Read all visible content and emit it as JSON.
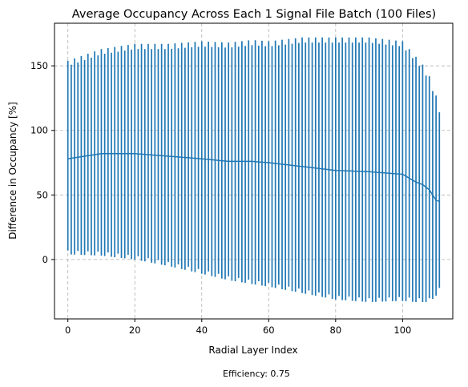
{
  "chart_data": {
    "type": "errorbar",
    "title": "Average Occupancy Across Each 1 Signal File Batch (100 Files)",
    "xlabel": "Radial Layer Index",
    "ylabel": "Difference in Occupancy [%]",
    "xlim": [
      -4,
      115
    ],
    "ylim": [
      -46,
      183
    ],
    "xticks": [
      0,
      20,
      40,
      60,
      80,
      100
    ],
    "yticks": [
      0,
      50,
      100,
      150
    ],
    "grid": true,
    "series_color": "#1f77b4",
    "anchors": {
      "x": [
        0,
        10,
        20,
        30,
        40,
        48,
        55,
        60,
        70,
        80,
        90,
        100,
        104,
        106,
        108,
        110,
        111
      ],
      "mean": [
        78,
        82,
        82,
        80,
        78,
        76,
        76,
        75,
        72,
        69,
        68,
        66,
        60,
        58,
        54,
        46,
        45
      ],
      "upper": [
        152,
        161,
        165,
        165,
        167,
        166,
        168,
        167,
        170,
        170,
        170,
        167,
        155,
        149,
        140,
        125,
        116
      ],
      "lower": [
        5,
        4,
        1,
        -4,
        -10,
        -15,
        -18,
        -20,
        -25,
        -30,
        -32,
        -31,
        -32,
        -32,
        -32,
        -27,
        -24
      ]
    },
    "footnote": "Efficiency: 0.75"
  }
}
